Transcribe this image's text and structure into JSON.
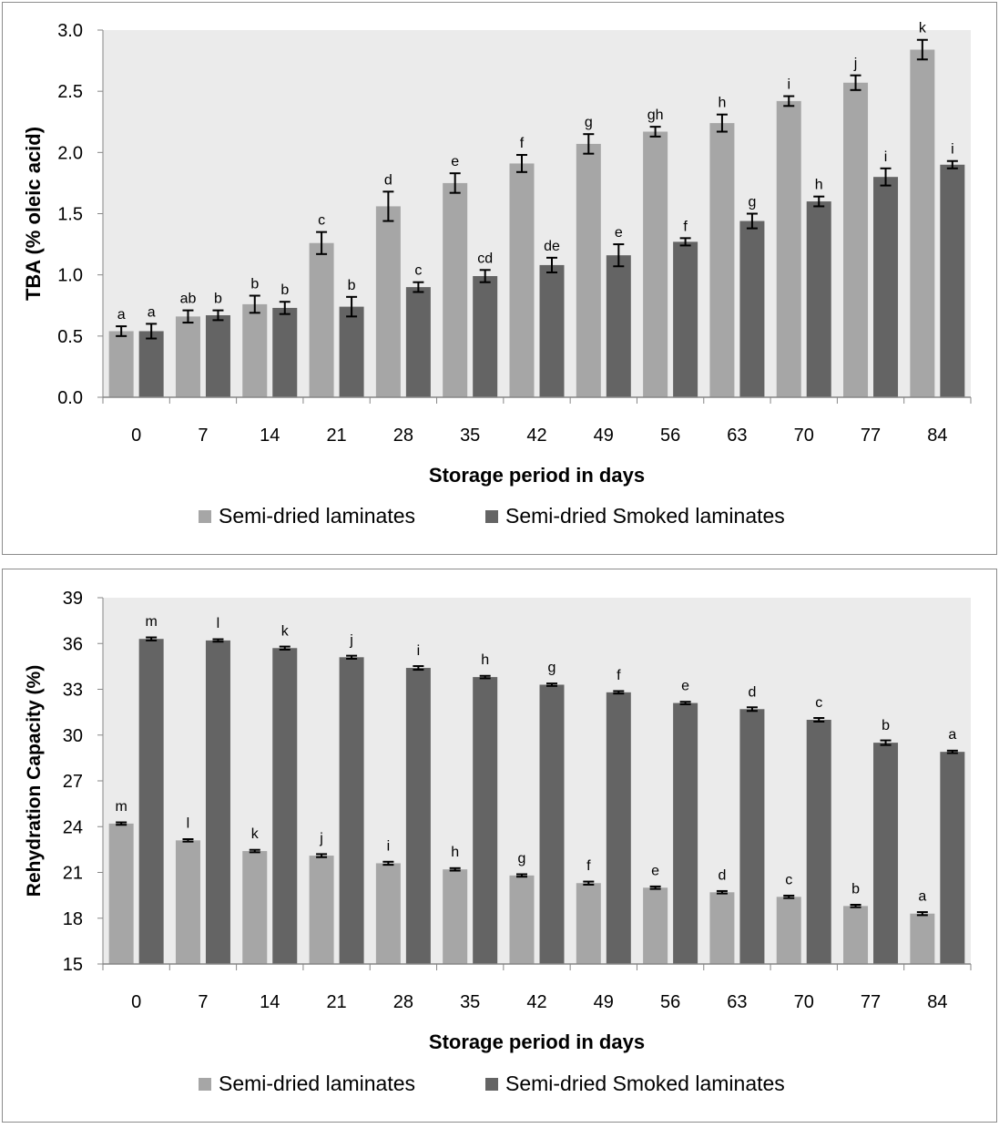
{
  "charts": [
    {
      "ylabel": "TBA (% oleic acid)",
      "xlabel": "Storage period in days",
      "ticks": [
        "0.0",
        "0.5",
        "1.0",
        "1.5",
        "2.0",
        "2.5",
        "3.0"
      ],
      "legend": [
        "Semi-dried laminates",
        "Semi-dried Smoked laminates"
      ]
    },
    {
      "ylabel": "Rehydration Capacity (%)",
      "xlabel": "Storage period in days",
      "ticks": [
        "15",
        "18",
        "21",
        "24",
        "27",
        "30",
        "33",
        "36",
        "39"
      ],
      "legend": [
        "Semi-dried laminates",
        "Semi-dried Smoked laminates"
      ]
    }
  ],
  "chart_data": [
    {
      "type": "bar",
      "xlabel": "Storage period in days",
      "ylabel": "TBA (% oleic acid)",
      "ylim": [
        0,
        3.0
      ],
      "grid": false,
      "legend_position": "bottom",
      "categories": [
        "0",
        "7",
        "14",
        "21",
        "28",
        "35",
        "42",
        "49",
        "56",
        "63",
        "70",
        "77",
        "84"
      ],
      "series": [
        {
          "name": "Semi-dried laminates",
          "color": "#a6a6a6",
          "values": [
            0.54,
            0.66,
            0.76,
            1.26,
            1.56,
            1.75,
            1.91,
            2.07,
            2.17,
            2.24,
            2.42,
            2.57,
            2.84
          ],
          "errors": [
            0.04,
            0.05,
            0.07,
            0.09,
            0.12,
            0.08,
            0.07,
            0.08,
            0.04,
            0.07,
            0.04,
            0.06,
            0.08
          ],
          "labels": [
            "a",
            "ab",
            "b",
            "c",
            "d",
            "e",
            "f",
            "g",
            "gh",
            "h",
            "i",
            "j",
            "k"
          ]
        },
        {
          "name": "Semi-dried Smoked laminates",
          "color": "#646464",
          "values": [
            0.54,
            0.67,
            0.73,
            0.74,
            0.9,
            0.99,
            1.08,
            1.16,
            1.27,
            1.44,
            1.6,
            1.8,
            1.9
          ],
          "errors": [
            0.06,
            0.04,
            0.05,
            0.08,
            0.04,
            0.05,
            0.06,
            0.09,
            0.03,
            0.06,
            0.04,
            0.07,
            0.03
          ],
          "labels": [
            "a",
            "b",
            "b",
            "b",
            "c",
            "cd",
            "de",
            "e",
            "f",
            "g",
            "h",
            "i",
            "i"
          ]
        }
      ]
    },
    {
      "type": "bar",
      "xlabel": "Storage period in days",
      "ylabel": "Rehydration Capacity (%)",
      "ylim": [
        15,
        39
      ],
      "grid": false,
      "legend_position": "bottom",
      "categories": [
        "0",
        "7",
        "14",
        "21",
        "28",
        "35",
        "42",
        "49",
        "56",
        "63",
        "70",
        "77",
        "84"
      ],
      "series": [
        {
          "name": "Semi-dried laminates",
          "color": "#a6a6a6",
          "values": [
            24.2,
            23.1,
            22.4,
            22.1,
            21.6,
            21.2,
            20.8,
            20.3,
            20.0,
            19.7,
            19.4,
            18.8,
            18.3
          ],
          "errors": [
            0.08,
            0.08,
            0.08,
            0.1,
            0.1,
            0.08,
            0.08,
            0.1,
            0.08,
            0.08,
            0.08,
            0.08,
            0.1
          ],
          "labels": [
            "m",
            "l",
            "k",
            "j",
            "i",
            "h",
            "g",
            "f",
            "e",
            "d",
            "c",
            "b",
            "a"
          ]
        },
        {
          "name": "Semi-dried Smoked laminates",
          "color": "#646464",
          "values": [
            36.3,
            36.2,
            35.7,
            35.1,
            34.4,
            33.8,
            33.3,
            32.8,
            32.1,
            31.7,
            31.0,
            29.5,
            28.9
          ],
          "errors": [
            0.1,
            0.08,
            0.1,
            0.1,
            0.12,
            0.08,
            0.08,
            0.08,
            0.08,
            0.12,
            0.12,
            0.15,
            0.08
          ],
          "labels": [
            "m",
            "l",
            "k",
            "j",
            "i",
            "h",
            "g",
            "f",
            "e",
            "d",
            "c",
            "b",
            "a"
          ]
        }
      ]
    }
  ]
}
